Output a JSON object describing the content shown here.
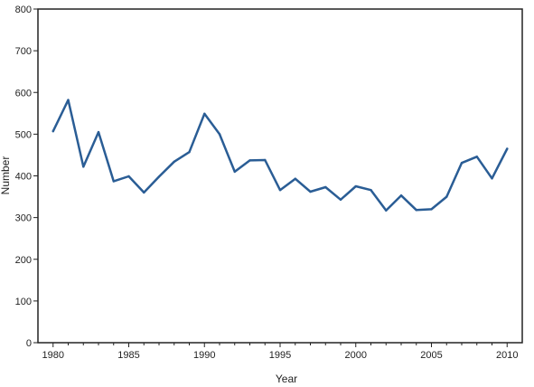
{
  "chart_data": {
    "type": "line",
    "title": "",
    "xlabel": "Year",
    "ylabel": "Number",
    "xlim": [
      1979,
      2011
    ],
    "ylim": [
      0,
      800
    ],
    "xticks": [
      1980,
      1985,
      1990,
      1995,
      2000,
      2005,
      2010
    ],
    "yticks": [
      0,
      100,
      200,
      300,
      400,
      500,
      600,
      700,
      800
    ],
    "grid": false,
    "legend": "none",
    "series_color": "#2a5d95",
    "x": [
      1980,
      1981,
      1982,
      1983,
      1984,
      1985,
      1986,
      1987,
      1988,
      1989,
      1990,
      1991,
      1992,
      1993,
      1994,
      1995,
      1996,
      1997,
      1998,
      1999,
      2000,
      2001,
      2002,
      2003,
      2004,
      2005,
      2006,
      2007,
      2008,
      2009,
      2010
    ],
    "series": [
      {
        "values": [
          507,
          582,
          422,
          505,
          387,
          399,
          360,
          398,
          434,
          457,
          549,
          500,
          410,
          437,
          438,
          366,
          393,
          362,
          373,
          343,
          375,
          366,
          317,
          353,
          318,
          320,
          350,
          431,
          446,
          394,
          465
        ]
      }
    ]
  }
}
